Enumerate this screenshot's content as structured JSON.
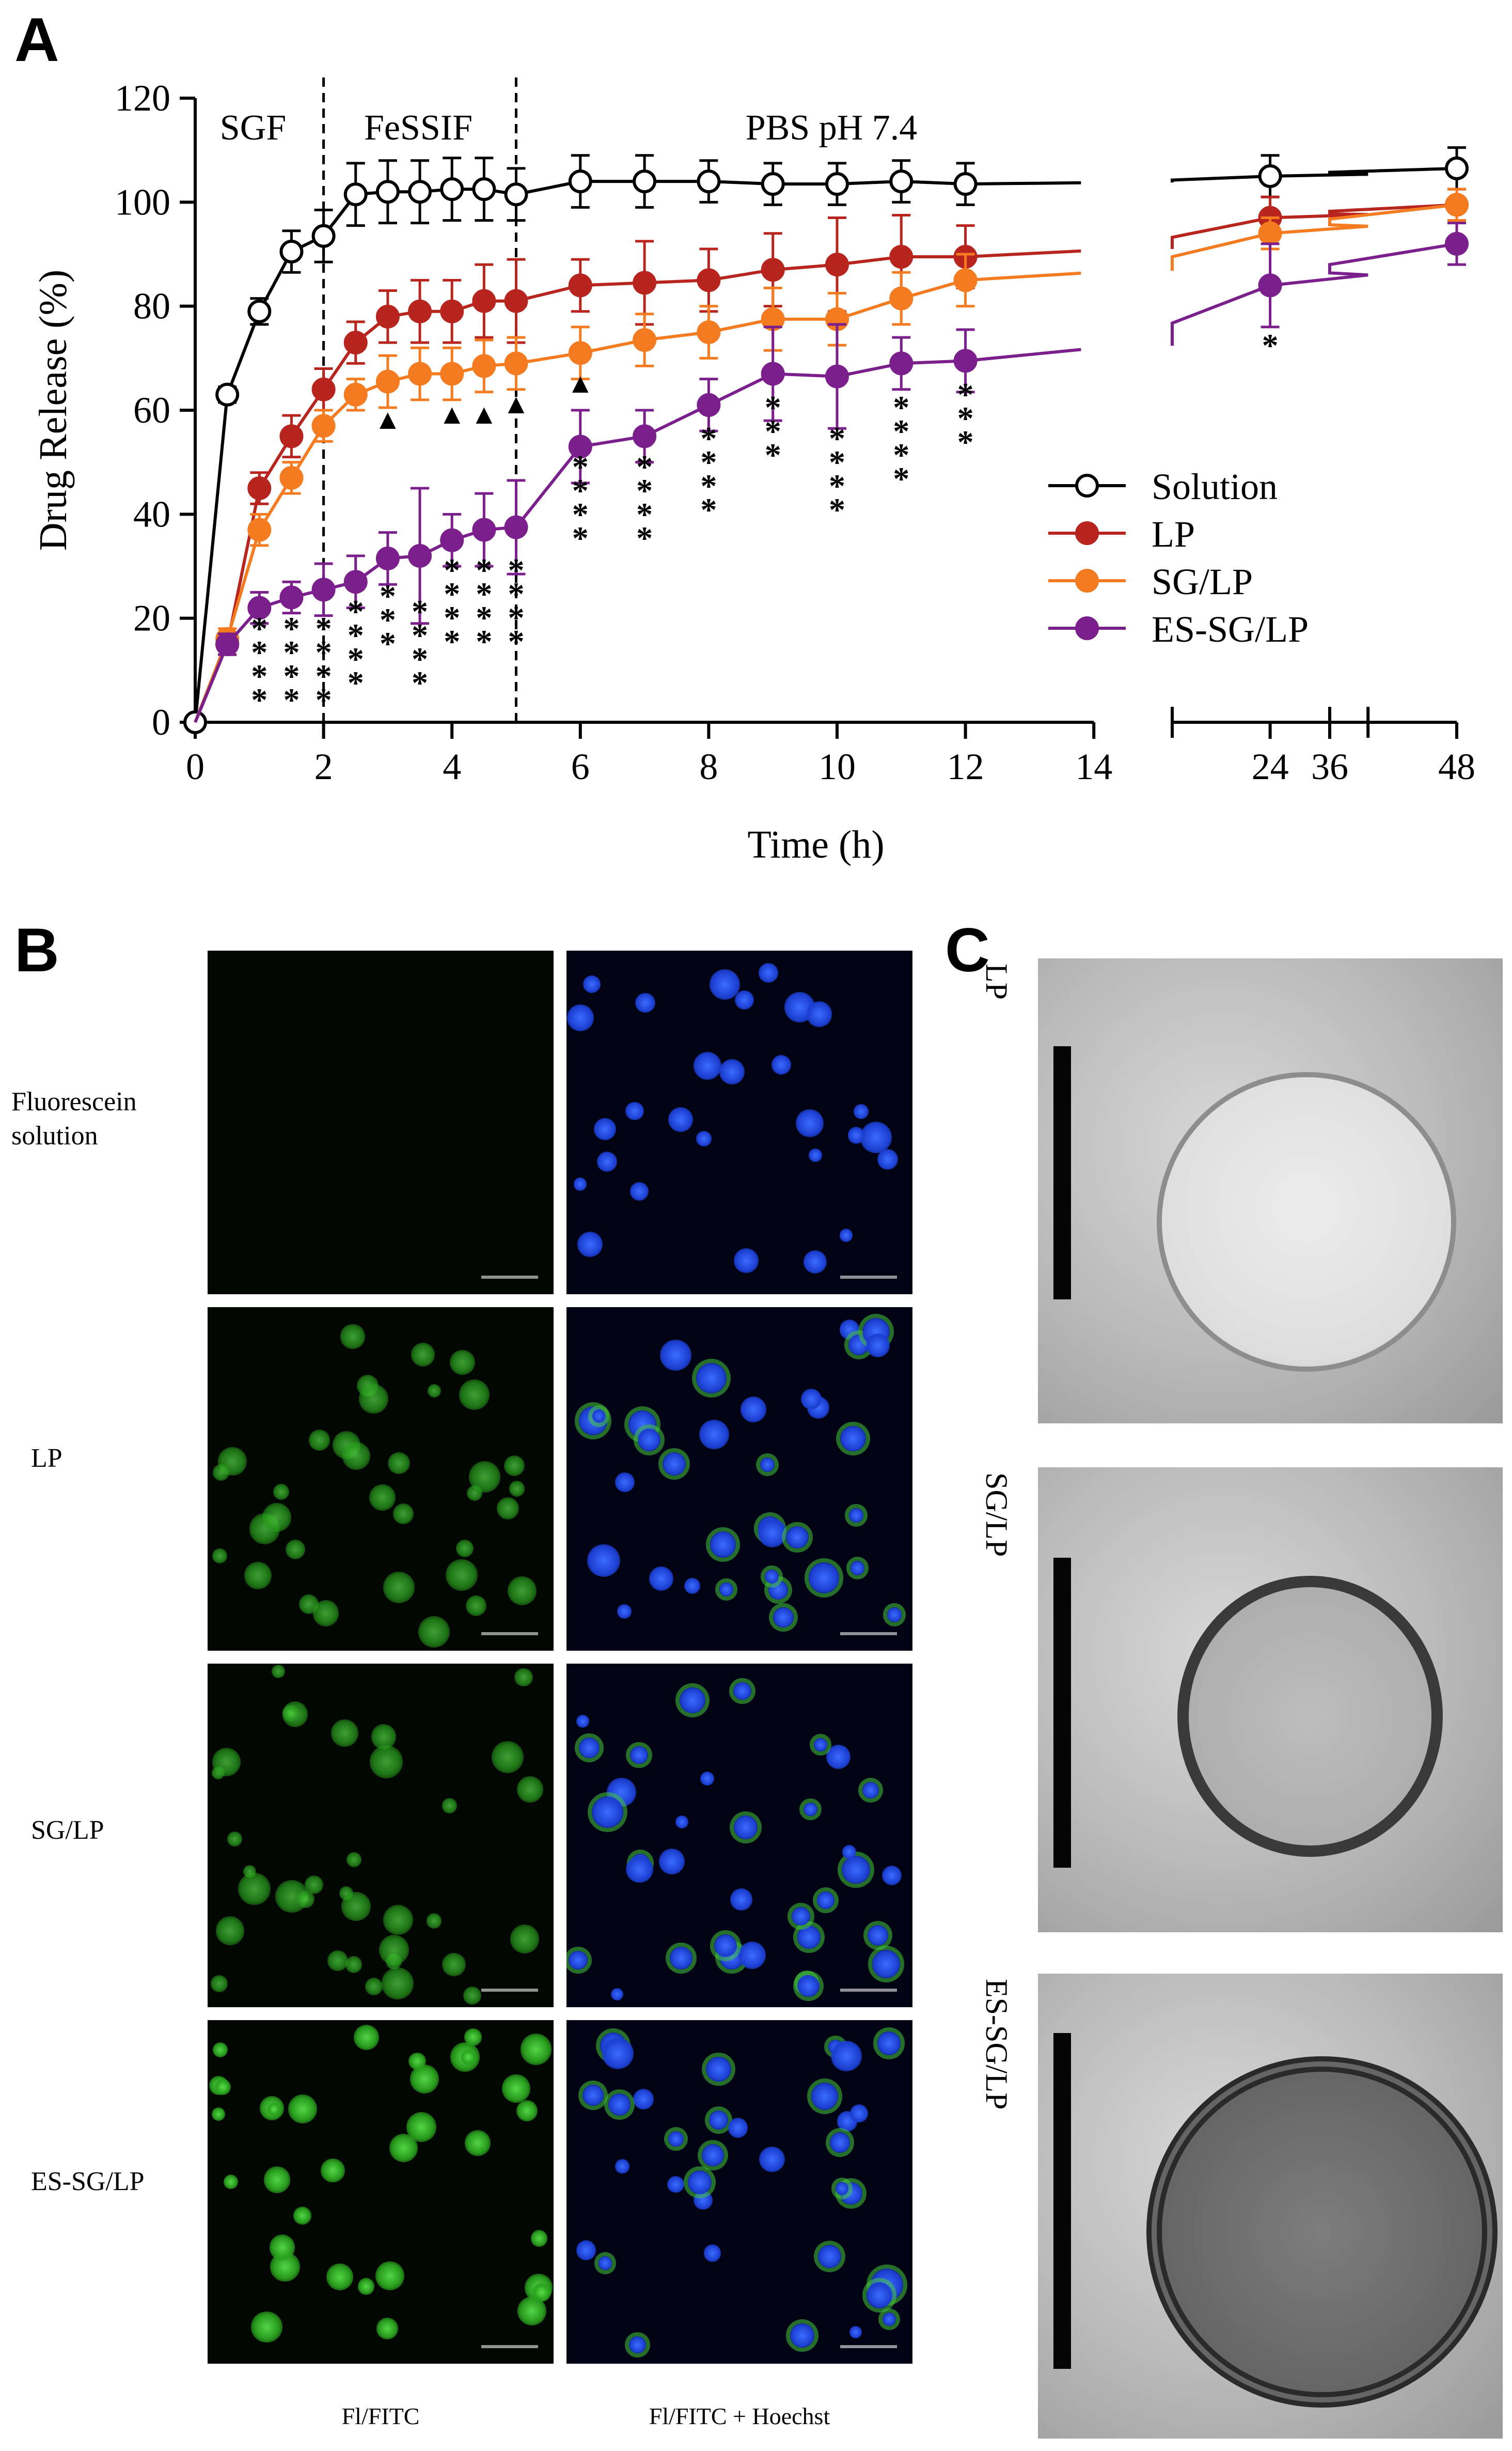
{
  "panels": {
    "a": "A",
    "b": "B",
    "c": "C"
  },
  "chart_data": {
    "type": "line",
    "title": "",
    "xlabel": "Time (h)",
    "ylabel": "Drug Release  (%)",
    "ylim": [
      0,
      120
    ],
    "yticks": [
      "0",
      "20",
      "40",
      "60",
      "80",
      "100",
      "120"
    ],
    "xticks": [
      "0",
      "2",
      "4",
      "6",
      "8",
      "10",
      "12",
      "14",
      "24",
      "36",
      "48"
    ],
    "phases": [
      "SGF",
      "FeSSIF",
      "PBS pH 7.4"
    ],
    "legend_position": "right",
    "series": [
      {
        "name": "Solution",
        "color": "#000000",
        "hollow": true,
        "points": [
          [
            0,
            0
          ],
          [
            0.5,
            63
          ],
          [
            1,
            79
          ],
          [
            1.5,
            90.5
          ],
          [
            2,
            93.5
          ],
          [
            2.5,
            101.5
          ],
          [
            3,
            102
          ],
          [
            3.5,
            102
          ],
          [
            4,
            102.5
          ],
          [
            4.5,
            102.5
          ],
          [
            5,
            101.5
          ],
          [
            6,
            104
          ],
          [
            7,
            104
          ],
          [
            8,
            104
          ],
          [
            9,
            103.5
          ],
          [
            10,
            103.5
          ],
          [
            11,
            104
          ],
          [
            12,
            103.5
          ],
          [
            24,
            105
          ],
          [
            48,
            106.5
          ]
        ],
        "errors": [
          0,
          1.5,
          2.5,
          4,
          5,
          6,
          6,
          6,
          6,
          6,
          5,
          5,
          5,
          4,
          4,
          4,
          4,
          4,
          4,
          4
        ]
      },
      {
        "name": "LP",
        "color": "#b8251e",
        "hollow": false,
        "points": [
          [
            0.5,
            15
          ],
          [
            1,
            45
          ],
          [
            1.5,
            55
          ],
          [
            2,
            64
          ],
          [
            2.5,
            73
          ],
          [
            3,
            78
          ],
          [
            3.5,
            79
          ],
          [
            4,
            79
          ],
          [
            4.5,
            81
          ],
          [
            5,
            81
          ],
          [
            6,
            84
          ],
          [
            7,
            84.5
          ],
          [
            8,
            85
          ],
          [
            9,
            87
          ],
          [
            10,
            88
          ],
          [
            11,
            89.5
          ],
          [
            12,
            89.5
          ],
          [
            24,
            97
          ],
          [
            48,
            99.5
          ]
        ],
        "errors": [
          2,
          3,
          4,
          4,
          4,
          5,
          6,
          6,
          7,
          8,
          5,
          8,
          6,
          7,
          9,
          8,
          6,
          4,
          3
        ]
      },
      {
        "name": "SG/LP",
        "color": "#f47b20",
        "hollow": false,
        "points": [
          [
            0.5,
            16
          ],
          [
            1,
            37
          ],
          [
            1.5,
            47
          ],
          [
            2,
            57
          ],
          [
            2.5,
            63
          ],
          [
            3,
            65.5
          ],
          [
            3.5,
            67
          ],
          [
            4,
            67
          ],
          [
            4.5,
            68.5
          ],
          [
            5,
            69
          ],
          [
            6,
            71
          ],
          [
            7,
            73.5
          ],
          [
            8,
            75
          ],
          [
            9,
            77.5
          ],
          [
            10,
            77.5
          ],
          [
            11,
            81.5
          ],
          [
            12,
            85
          ],
          [
            24,
            94
          ],
          [
            48,
            99.5
          ]
        ],
        "errors": [
          2,
          3,
          3,
          3,
          3,
          5,
          5,
          5,
          5,
          5,
          5,
          5,
          5,
          6,
          5,
          5,
          5,
          3,
          3
        ]
      },
      {
        "name": "ES-SG/LP",
        "color": "#7b1f8c",
        "hollow": false,
        "points": [
          [
            0.5,
            15
          ],
          [
            1,
            22
          ],
          [
            1.5,
            24
          ],
          [
            2,
            25.5
          ],
          [
            2.5,
            27
          ],
          [
            3,
            31.5
          ],
          [
            3.5,
            32
          ],
          [
            4,
            35
          ],
          [
            4.5,
            37
          ],
          [
            5,
            37.5
          ],
          [
            6,
            53
          ],
          [
            7,
            55
          ],
          [
            8,
            61
          ],
          [
            9,
            67
          ],
          [
            10,
            66.5
          ],
          [
            11,
            69
          ],
          [
            12,
            69.5
          ],
          [
            24,
            84
          ],
          [
            48,
            92
          ]
        ],
        "errors": [
          2,
          3,
          3,
          5,
          5,
          5,
          13,
          5,
          7,
          9,
          7,
          5,
          5,
          9,
          10,
          5,
          6,
          8,
          4
        ]
      }
    ],
    "significance": {
      "stars": [
        {
          "x": 1,
          "label": "****"
        },
        {
          "x": 1.5,
          "label": "****"
        },
        {
          "x": 2,
          "label": "****"
        },
        {
          "x": 2.5,
          "label": "****"
        },
        {
          "x": 3,
          "label": "***"
        },
        {
          "x": 3.5,
          "label": "****"
        },
        {
          "x": 4,
          "label": "****"
        },
        {
          "x": 4.5,
          "label": "****"
        },
        {
          "x": 5,
          "label": "****"
        },
        {
          "x": 6,
          "label": "****"
        },
        {
          "x": 7,
          "label": "****"
        },
        {
          "x": 8,
          "label": "****"
        },
        {
          "x": 9,
          "label": "***"
        },
        {
          "x": 10,
          "label": "****"
        },
        {
          "x": 11,
          "label": "****"
        },
        {
          "x": 12,
          "label": "***"
        },
        {
          "x": 24,
          "label": "*"
        }
      ],
      "triangle_label": "▲",
      "triangles_x": [
        3,
        4,
        4.5,
        5,
        6
      ]
    }
  },
  "panel_b": {
    "rows": [
      "Fluorescein solution",
      "LP",
      "SG/LP",
      "ES-SG/LP"
    ],
    "columns": [
      "Fl/FITC",
      "Fl/FITC + Hoechst"
    ]
  },
  "panel_c": {
    "rows": [
      "LP",
      "SG/LP",
      "ES-SG/LP"
    ]
  }
}
